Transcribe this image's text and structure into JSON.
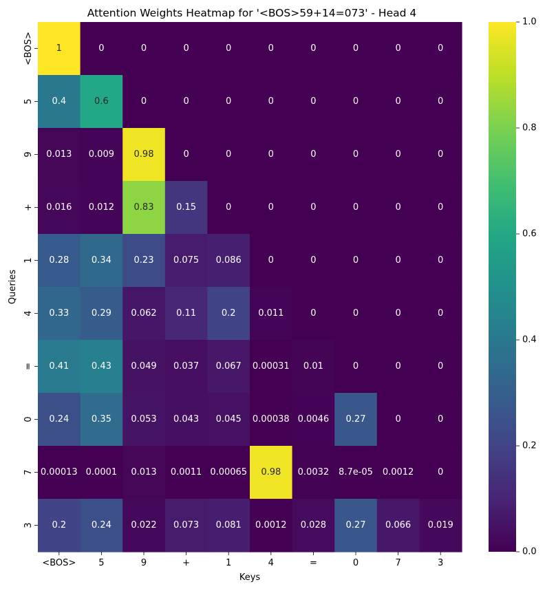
{
  "chart_data": {
    "type": "heatmap",
    "title": "Attention Weights Heatmap for '<BOS>59+14=073' - Head 4",
    "xlabel": "Keys",
    "ylabel": "Queries",
    "x_categories": [
      "<BOS>",
      "5",
      "9",
      "+",
      "1",
      "4",
      "=",
      "0",
      "7",
      "3"
    ],
    "y_categories": [
      "<BOS>",
      "5",
      "9",
      "+",
      "1",
      "4",
      "=",
      "0",
      "7",
      "3"
    ],
    "values": [
      [
        1,
        0,
        0,
        0,
        0,
        0,
        0,
        0,
        0,
        0
      ],
      [
        0.4,
        0.6,
        0,
        0,
        0,
        0,
        0,
        0,
        0,
        0
      ],
      [
        0.013,
        0.009,
        0.98,
        0,
        0,
        0,
        0,
        0,
        0,
        0
      ],
      [
        0.016,
        0.012,
        0.83,
        0.15,
        0,
        0,
        0,
        0,
        0,
        0
      ],
      [
        0.28,
        0.34,
        0.23,
        0.075,
        0.086,
        0,
        0,
        0,
        0,
        0
      ],
      [
        0.33,
        0.29,
        0.062,
        0.11,
        0.2,
        0.011,
        0,
        0,
        0,
        0
      ],
      [
        0.41,
        0.43,
        0.049,
        0.037,
        0.067,
        0.00031,
        0.01,
        0,
        0,
        0
      ],
      [
        0.24,
        0.35,
        0.053,
        0.043,
        0.045,
        0.00038,
        0.0046,
        0.27,
        0,
        0
      ],
      [
        0.00013,
        0.0001,
        0.013,
        0.0011,
        0.00065,
        0.98,
        0.0032,
        8.7e-05,
        0.0012,
        0
      ],
      [
        0.2,
        0.24,
        0.022,
        0.073,
        0.081,
        0.0012,
        0.028,
        0.27,
        0.066,
        0.019
      ]
    ],
    "cell_labels": [
      [
        "1",
        "0",
        "0",
        "0",
        "0",
        "0",
        "0",
        "0",
        "0",
        "0"
      ],
      [
        "0.4",
        "0.6",
        "0",
        "0",
        "0",
        "0",
        "0",
        "0",
        "0",
        "0"
      ],
      [
        "0.013",
        "0.009",
        "0.98",
        "0",
        "0",
        "0",
        "0",
        "0",
        "0",
        "0"
      ],
      [
        "0.016",
        "0.012",
        "0.83",
        "0.15",
        "0",
        "0",
        "0",
        "0",
        "0",
        "0"
      ],
      [
        "0.28",
        "0.34",
        "0.23",
        "0.075",
        "0.086",
        "0",
        "0",
        "0",
        "0",
        "0"
      ],
      [
        "0.33",
        "0.29",
        "0.062",
        "0.11",
        "0.2",
        "0.011",
        "0",
        "0",
        "0",
        "0"
      ],
      [
        "0.41",
        "0.43",
        "0.049",
        "0.037",
        "0.067",
        "0.00031",
        "0.01",
        "0",
        "0",
        "0"
      ],
      [
        "0.24",
        "0.35",
        "0.053",
        "0.043",
        "0.045",
        "0.00038",
        "0.0046",
        "0.27",
        "0",
        "0"
      ],
      [
        "0.00013",
        "0.0001",
        "0.013",
        "0.0011",
        "0.00065",
        "0.98",
        "0.0032",
        "8.7e-05",
        "0.0012",
        "0"
      ],
      [
        "0.2",
        "0.24",
        "0.022",
        "0.073",
        "0.081",
        "0.0012",
        "0.028",
        "0.27",
        "0.066",
        "0.019"
      ]
    ],
    "colormap": "viridis",
    "vmin": 0.0,
    "vmax": 1.0,
    "colorbar_ticks": [
      "0.0",
      "0.2",
      "0.4",
      "0.6",
      "0.8",
      "1.0"
    ],
    "grid": false
  }
}
